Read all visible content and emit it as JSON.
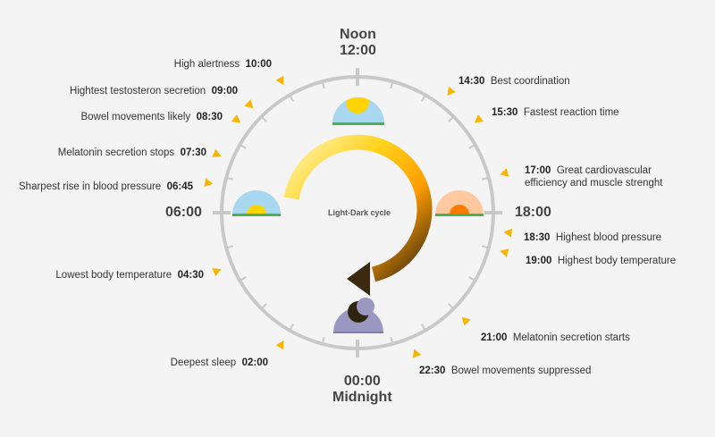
{
  "diagram": {
    "center_label": "Light-Dark cycle",
    "noon": {
      "name": "Noon",
      "time": "12:00"
    },
    "midnight": {
      "time": "00:00",
      "name": "Midnight"
    },
    "left_time": "06:00",
    "right_time": "18:00",
    "colors": {
      "ring": "#c8c8c8",
      "tick": "#c8c8c8",
      "marker": "#f7b500",
      "arc_start": "#fff4b0",
      "arc_mid": "#ffb000",
      "arc_end": "#3b2a10",
      "sky": "#a8d8ef",
      "grass": "#4caf50",
      "sun": "#ffd400",
      "sunset_sky": "#ffc9a0",
      "sunset_sun": "#ff7a00",
      "night_sky": "#9a97c0",
      "moon": "#2e2410"
    },
    "events": [
      {
        "time": "10:00",
        "text": "High alertness",
        "side": "left"
      },
      {
        "time": "09:00",
        "text": "Hightest testosteron secretion",
        "side": "left"
      },
      {
        "time": "08:30",
        "text": "Bowel movements likely",
        "side": "left"
      },
      {
        "time": "07:30",
        "text": "Melatonin secretion stops",
        "side": "left"
      },
      {
        "time": "06:45",
        "text": "Sharpest rise in blood pressure",
        "side": "left"
      },
      {
        "time": "04:30",
        "text": "Lowest body temperature",
        "side": "left"
      },
      {
        "time": "02:00",
        "text": "Deepest sleep",
        "side": "left"
      },
      {
        "time": "14:30",
        "text": "Best coordination",
        "side": "right"
      },
      {
        "time": "15:30",
        "text": "Fastest reaction time",
        "side": "right"
      },
      {
        "time": "17:00",
        "text": "Great cardiovascular",
        "text2": "efficiency and muscle strenght",
        "side": "right"
      },
      {
        "time": "18:30",
        "text": "Highest blood pressure",
        "side": "right"
      },
      {
        "time": "19:00",
        "text": "Highest body temperature",
        "side": "right"
      },
      {
        "time": "21:00",
        "text": "Melatonin secretion starts",
        "side": "right"
      },
      {
        "time": "22:30",
        "text": "Bowel movements suppressed",
        "side": "right"
      }
    ]
  }
}
